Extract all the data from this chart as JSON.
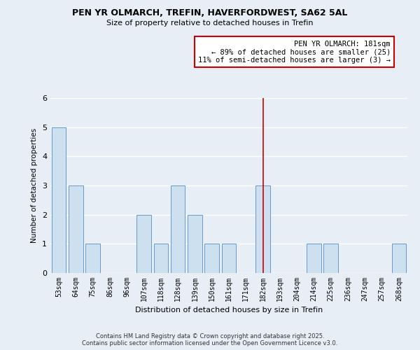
{
  "title1": "PEN YR OLMARCH, TREFIN, HAVERFORDWEST, SA62 5AL",
  "title2": "Size of property relative to detached houses in Trefin",
  "xlabel": "Distribution of detached houses by size in Trefin",
  "ylabel": "Number of detached properties",
  "bins": [
    "53sqm",
    "64sqm",
    "75sqm",
    "86sqm",
    "96sqm",
    "107sqm",
    "118sqm",
    "128sqm",
    "139sqm",
    "150sqm",
    "161sqm",
    "171sqm",
    "182sqm",
    "193sqm",
    "204sqm",
    "214sqm",
    "225sqm",
    "236sqm",
    "247sqm",
    "257sqm",
    "268sqm"
  ],
  "counts": [
    5,
    3,
    1,
    0,
    0,
    2,
    1,
    3,
    2,
    1,
    1,
    0,
    3,
    0,
    0,
    1,
    1,
    0,
    0,
    0,
    1
  ],
  "bar_color": "#cce0f0",
  "bar_edge_color": "#6699cc",
  "vline_x_index": 12,
  "vline_color": "#cc0000",
  "annotation_line1": "PEN YR OLMARCH: 181sqm",
  "annotation_line2": "← 89% of detached houses are smaller (25)",
  "annotation_line3": "11% of semi-detached houses are larger (3) →",
  "annotation_box_color": "#ffffff",
  "annotation_box_edge": "#cc0000",
  "ylim": [
    0,
    6
  ],
  "yticks": [
    0,
    1,
    2,
    3,
    4,
    5,
    6
  ],
  "plot_bg_color": "#e8eef5",
  "fig_bg_color": "#e8eef5",
  "grid_color": "#ffffff",
  "footer_text": "Contains HM Land Registry data © Crown copyright and database right 2025.\nContains public sector information licensed under the Open Government Licence v3.0."
}
